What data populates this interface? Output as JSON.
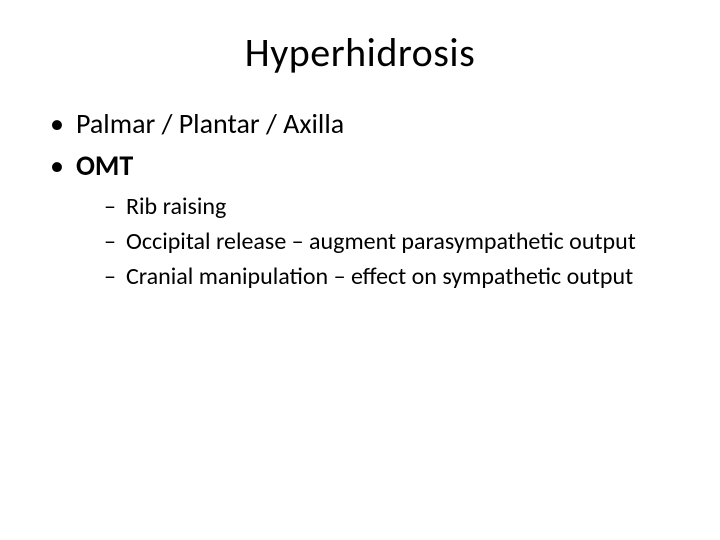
{
  "slide": {
    "title": "Hyperhidrosis",
    "bullets": [
      {
        "text": "Palmar / Plantar / Axilla",
        "bold": false
      },
      {
        "text": "OMT",
        "bold": true
      }
    ],
    "sub_bullets": [
      "Rib raising",
      "Occipital release – augment parasympathetic output",
      "Cranial manipulation – effect on sympathetic output"
    ]
  },
  "style": {
    "background_color": "#ffffff",
    "text_color": "#000000",
    "title_fontsize": 40,
    "level1_fontsize": 28,
    "level2_fontsize": 24,
    "font_family": "Calibri"
  }
}
